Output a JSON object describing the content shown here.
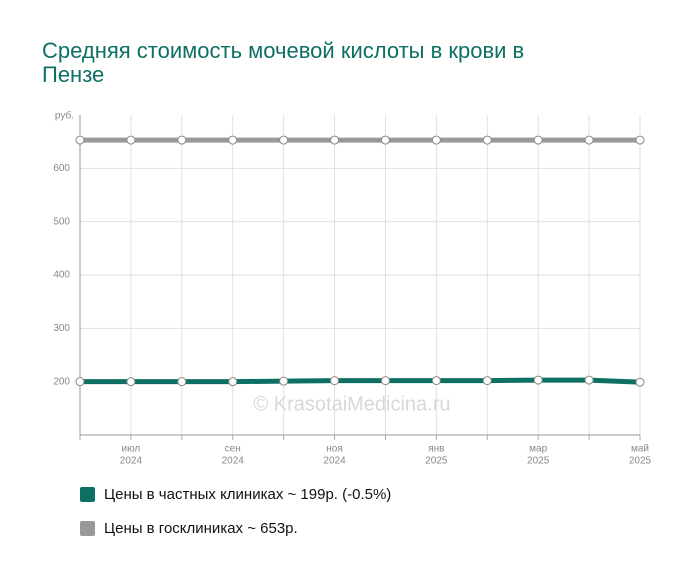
{
  "chart_data": {
    "type": "line",
    "title": "Средняя стоимость мочевой кислоты в крови в Пензе",
    "y_unit": "руб.",
    "watermark": "© KrasotaiMedicina.ru",
    "categories": [
      null,
      "июл",
      null,
      "сен",
      null,
      "ноя",
      null,
      "янв",
      null,
      "мар",
      null,
      "май"
    ],
    "category_years": [
      null,
      "2024",
      null,
      "2024",
      null,
      "2024",
      null,
      "2025",
      null,
      "2025",
      null,
      "2025"
    ],
    "ylim": [
      100,
      700
    ],
    "yticks": [
      200,
      300,
      400,
      500,
      600
    ],
    "grid": true,
    "series": [
      {
        "name": "Цены в частных клиниках ~ 199р. (-0.5%)",
        "color": "#0e6f63",
        "values": [
          200,
          200,
          200,
          200,
          201,
          202,
          202,
          202,
          202,
          203,
          203,
          199
        ]
      },
      {
        "name": "Цены в госклиниках ~ 653р.",
        "color": "#999999",
        "values": [
          653,
          653,
          653,
          653,
          653,
          653,
          653,
          653,
          653,
          653,
          653,
          653
        ]
      }
    ]
  }
}
